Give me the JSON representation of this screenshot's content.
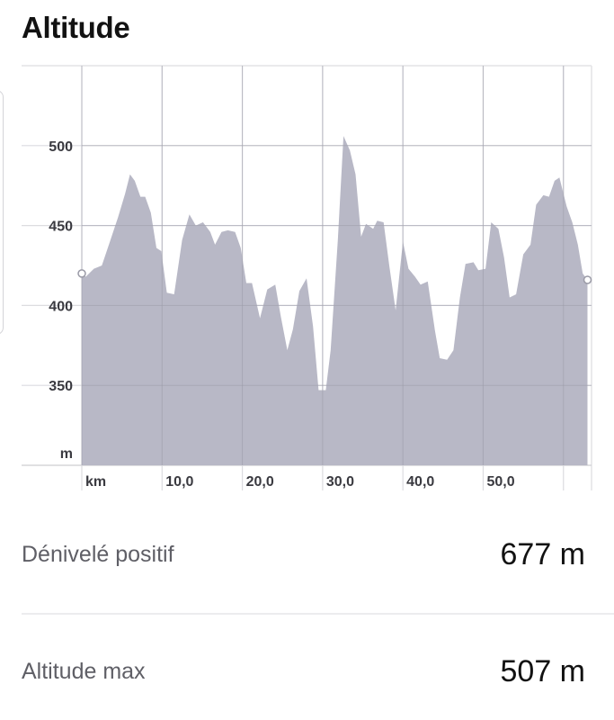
{
  "title": "Altitude",
  "chart_data": {
    "type": "area",
    "title": "",
    "xlabel": "km",
    "ylabel": "m",
    "xlim": [
      0,
      63.5
    ],
    "ylim": [
      300,
      550
    ],
    "x_ticks": [
      {
        "value": 0,
        "label": "km"
      },
      {
        "value": 10,
        "label": "10,0"
      },
      {
        "value": 20,
        "label": "20,0"
      },
      {
        "value": 30,
        "label": "30,0"
      },
      {
        "value": 40,
        "label": "40,0"
      },
      {
        "value": 50,
        "label": "50,0"
      }
    ],
    "y_ticks": [
      {
        "value": 300,
        "label": "m"
      },
      {
        "value": 350,
        "label": "350"
      },
      {
        "value": 400,
        "label": "400"
      },
      {
        "value": 450,
        "label": "450"
      },
      {
        "value": 500,
        "label": "500"
      }
    ],
    "grid": true,
    "fill_color": "#b8b8c6",
    "series": [
      {
        "x": [
          0,
          0.5,
          1.5,
          2.5,
          3.5,
          4.5,
          5.4,
          6.0,
          6.6,
          7.3,
          7.9,
          8.6,
          9.3,
          9.9,
          10.6,
          11.5,
          12.5,
          13.4,
          14.2,
          15.1,
          16.0,
          16.6,
          17.4,
          18.2,
          19.1,
          19.8,
          20.5,
          21.2,
          22.2,
          23.1,
          24.1,
          24.8,
          25.6,
          26.3,
          27.1,
          28.0,
          28.8,
          29.5,
          30.4,
          31.0,
          31.9,
          32.6,
          33.4,
          34.1,
          34.8,
          35.4,
          36.3,
          36.8,
          37.6,
          38.3,
          39.1,
          40.0,
          40.7,
          41.5,
          42.2,
          43.1,
          44.0,
          44.6,
          45.5,
          46.3,
          47.1,
          47.8,
          48.8,
          49.4,
          50.3,
          51.0,
          51.9,
          52.6,
          53.3,
          54.1,
          55.0,
          55.9,
          56.6,
          57.5,
          58.2,
          58.9,
          59.5,
          60.4,
          61.1,
          61.8,
          62.4,
          63.0
        ],
        "y": [
          420,
          418,
          423,
          425,
          440,
          455,
          470,
          482,
          478,
          468,
          468,
          458,
          436,
          434,
          408,
          407,
          441,
          457,
          450,
          452,
          446,
          438,
          446,
          447,
          446,
          436,
          414,
          414,
          392,
          410,
          413,
          393,
          372,
          385,
          409,
          417,
          387,
          347,
          347,
          372,
          441,
          506,
          497,
          482,
          443,
          451,
          448,
          453,
          452,
          425,
          397,
          440,
          423,
          418,
          413,
          415,
          384,
          367,
          366,
          372,
          405,
          426,
          427,
          422,
          423,
          452,
          448,
          430,
          405,
          407,
          432,
          438,
          463,
          469,
          468,
          478,
          480,
          462,
          452,
          438,
          420,
          416
        ]
      }
    ]
  },
  "stats": [
    {
      "label": "Dénivelé positif",
      "value": "677 m"
    },
    {
      "label": "Altitude max",
      "value": "507 m"
    }
  ]
}
